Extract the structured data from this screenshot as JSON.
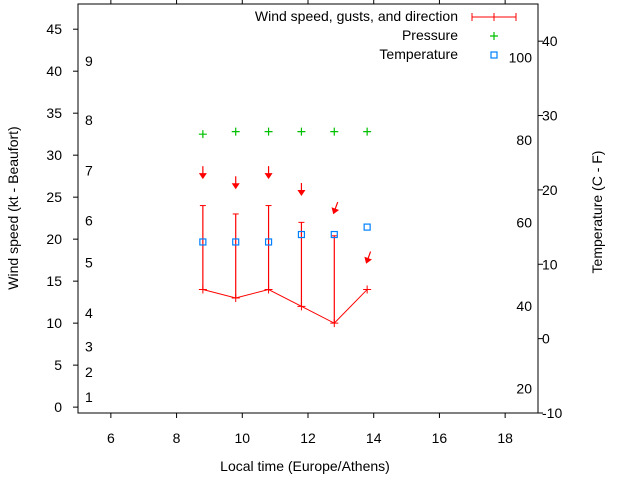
{
  "chart_data": {
    "type": "line",
    "xlabel": "Local time (Europe/Athens)",
    "ylabel": "Wind speed (kt - Beaufort)",
    "y2label": "Temperature (C - F)",
    "xlim": [
      5,
      19
    ],
    "ylim": [
      -0.7,
      48
    ],
    "y2lim": [
      -10,
      45
    ],
    "x_ticks": [
      6,
      8,
      10,
      12,
      14,
      16,
      18
    ],
    "y_ticks": [
      0,
      5,
      10,
      15,
      20,
      25,
      30,
      35,
      40,
      45
    ],
    "y2_ticks": [
      -10,
      0,
      10,
      20,
      30,
      40
    ],
    "beaufort_labels": [
      {
        "label": "1",
        "kt": 1.2
      },
      {
        "label": "2",
        "kt": 4.2
      },
      {
        "label": "3",
        "kt": 7.2
      },
      {
        "label": "4",
        "kt": 11.2
      },
      {
        "label": "5",
        "kt": 17.2
      },
      {
        "label": "6",
        "kt": 22.2
      },
      {
        "label": "7",
        "kt": 28.2
      },
      {
        "label": "8",
        "kt": 34.2
      },
      {
        "label": "9",
        "kt": 41.2
      }
    ],
    "fahrenheit_labels": [
      {
        "label": "20",
        "c": -6.7
      },
      {
        "label": "40",
        "c": 4.4
      },
      {
        "label": "60",
        "c": 15.6
      },
      {
        "label": "80",
        "c": 26.7
      },
      {
        "label": "100",
        "c": 37.8
      }
    ],
    "legend": {
      "position": "top-right"
    },
    "series": [
      {
        "name": "Wind speed, gusts, and direction",
        "color": "#ff0000",
        "x": [
          8.8,
          9.8,
          10.8,
          11.8,
          12.8,
          13.8
        ],
        "speed": [
          14,
          13,
          14,
          12,
          10,
          14
        ],
        "gusts": [
          24,
          23,
          24,
          22,
          20.4,
          null
        ],
        "arrow_y": [
          27.5,
          26.3,
          27.5,
          25.5,
          23.3,
          17.4
        ],
        "arrow_angle_deg": [
          0,
          0,
          0,
          0,
          20,
          20
        ]
      },
      {
        "name": "Pressure",
        "color": "#00c000",
        "x": [
          8.8,
          9.8,
          10.8,
          11.8,
          12.8,
          13.8
        ],
        "y": [
          32.5,
          32.8,
          32.8,
          32.8,
          32.8,
          32.8
        ]
      },
      {
        "name": "Temperature",
        "color": "#0080ff",
        "x": [
          8.8,
          9.8,
          10.8,
          11.8,
          12.8,
          13.8
        ],
        "y": [
          13,
          13,
          13,
          14,
          14,
          15
        ]
      }
    ]
  }
}
